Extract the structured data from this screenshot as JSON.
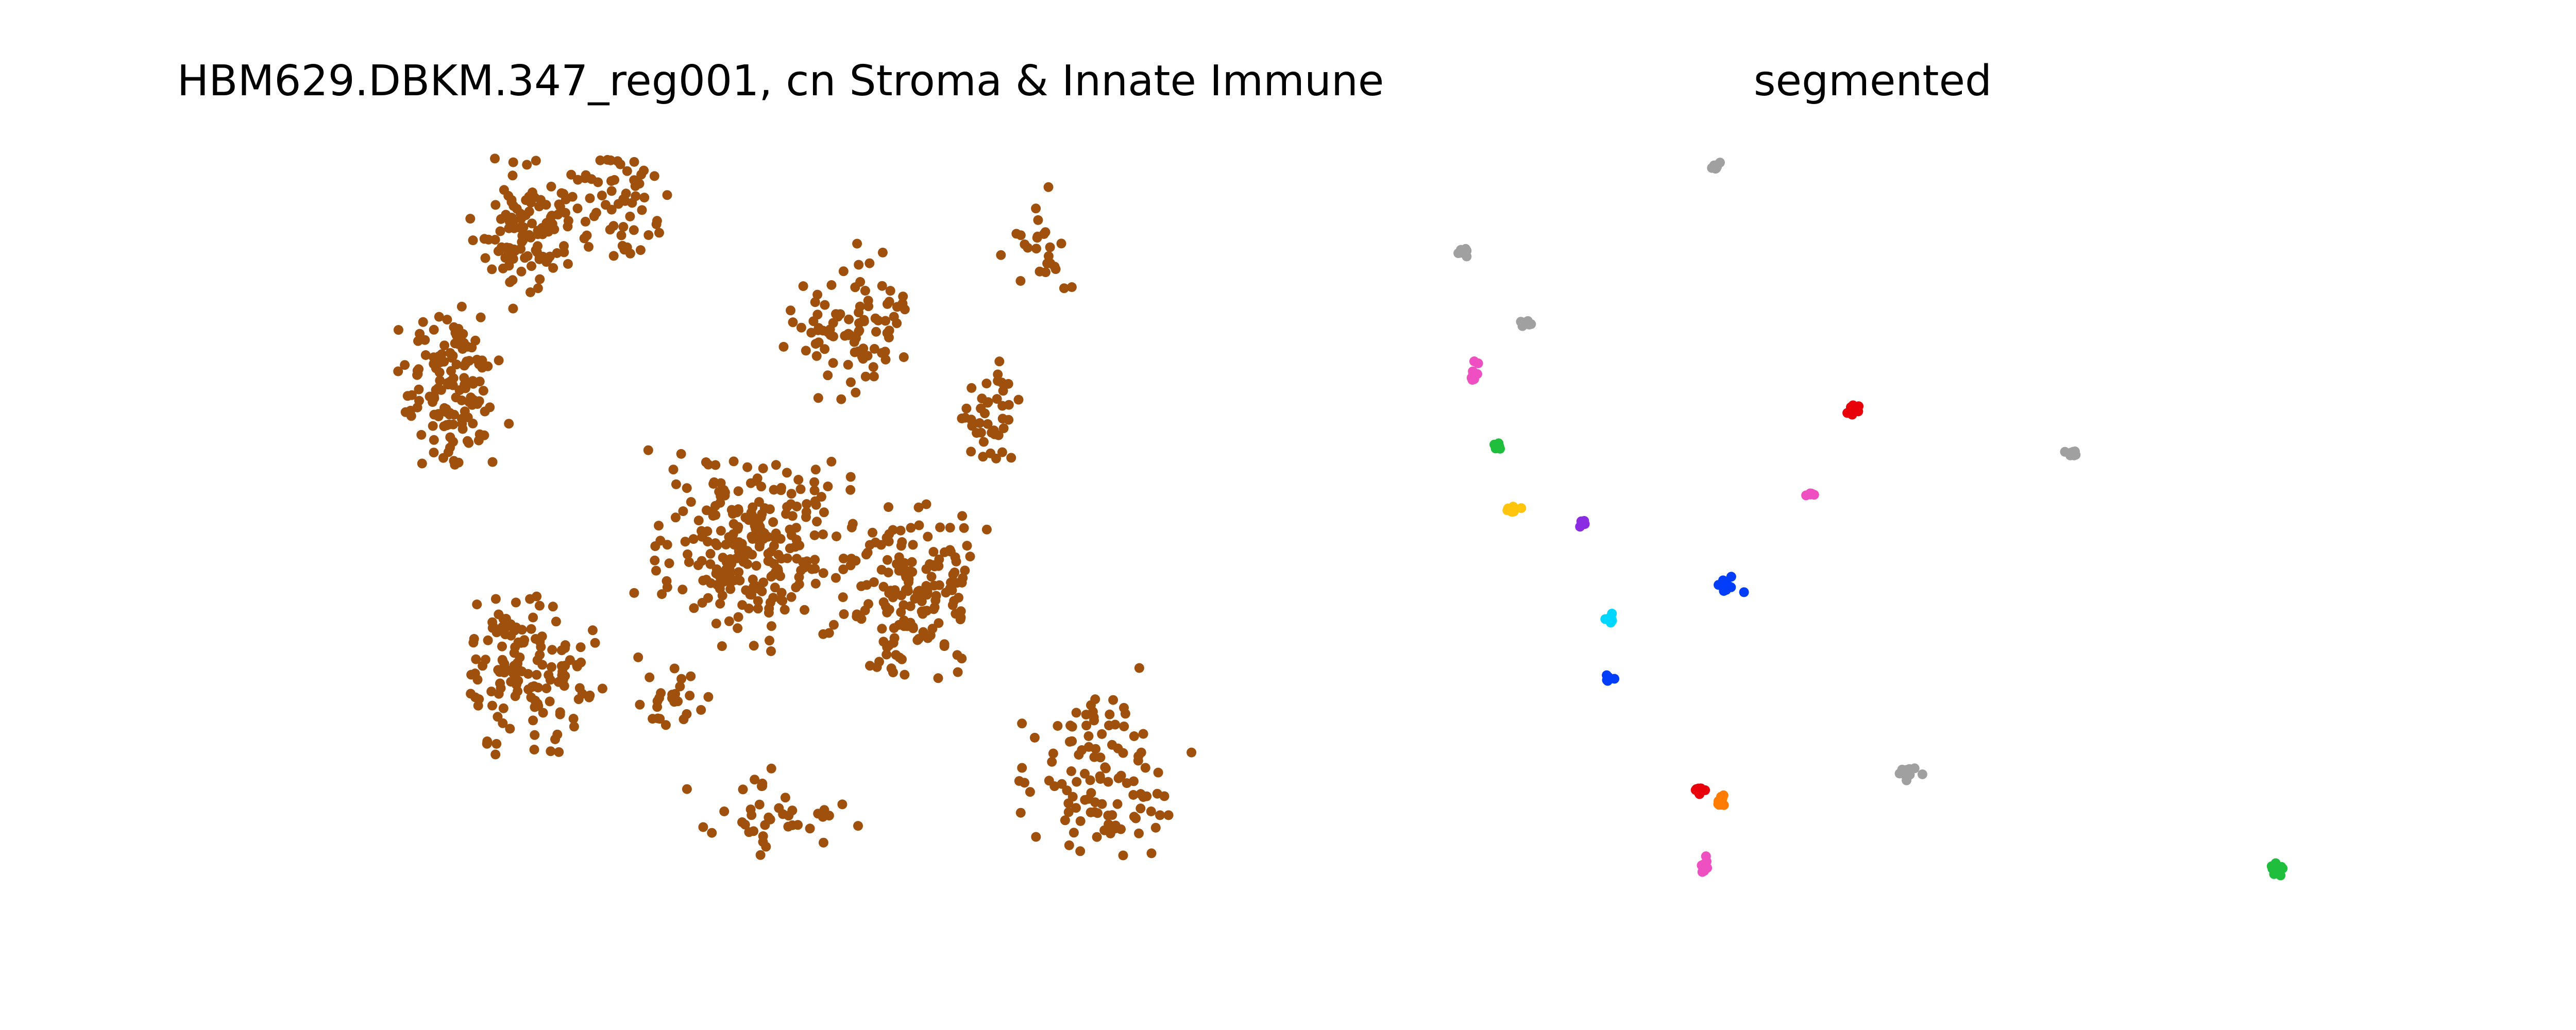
{
  "chart_data": [
    {
      "type": "scatter",
      "title": "HBM629.DBKM.347_reg001, cn Stroma & Innate Immune",
      "xlabel": "",
      "ylabel": "",
      "axes_visible": false,
      "grid": false,
      "point_color": "#a0500d",
      "region_seed": 629
    },
    {
      "type": "scatter",
      "title": "segmented",
      "xlabel": "",
      "ylabel": "",
      "axes_visible": false,
      "grid": false,
      "colors": {
        "gray": "#a0a0a0",
        "pink": "#ee4fc1",
        "green": "#1fbe3c",
        "yellow": "#ffc40c",
        "purple": "#8b2be2",
        "red": "#e8000b",
        "blue": "#023ef9",
        "cyan": "#00d7ff",
        "orange": "#ff7c00"
      },
      "clusters": [
        {
          "color": "gray"
        },
        {
          "color": "gray"
        },
        {
          "color": "gray"
        },
        {
          "color": "pink"
        },
        {
          "color": "green"
        },
        {
          "color": "yellow"
        },
        {
          "color": "purple"
        },
        {
          "color": "red"
        },
        {
          "color": "gray"
        },
        {
          "color": "pink"
        },
        {
          "color": "blue"
        },
        {
          "color": "cyan"
        },
        {
          "color": "blue"
        },
        {
          "color": "gray"
        },
        {
          "color": "red"
        },
        {
          "color": "orange"
        },
        {
          "color": "pink"
        },
        {
          "color": "green"
        }
      ]
    }
  ]
}
